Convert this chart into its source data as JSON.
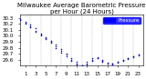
{
  "title": "Milwaukee Average Barometric Pressure",
  "subtitle": "per Hour (24 Hours)",
  "xlabel": "",
  "ylabel": "",
  "background_color": "#ffffff",
  "plot_background": "#ffffff",
  "dot_color": "#0000ff",
  "legend_color": "#0000ff",
  "grid_color": "#aaaaaa",
  "x_ticks": [
    1,
    3,
    5,
    7,
    9,
    11,
    13,
    15,
    17,
    19,
    21,
    23
  ],
  "xlim": [
    0,
    24
  ],
  "ylim_min": 29.5,
  "ylim_max": 30.35,
  "y_ticks": [
    29.6,
    29.7,
    29.8,
    29.9,
    30.0,
    30.1,
    30.2,
    30.3
  ],
  "hours": [
    0,
    0,
    0,
    1,
    1,
    1,
    2,
    2,
    2,
    3,
    3,
    3,
    4,
    4,
    4,
    5,
    5,
    5,
    6,
    6,
    6,
    7,
    7,
    7,
    8,
    8,
    8,
    9,
    9,
    9,
    10,
    10,
    10,
    11,
    11,
    11,
    12,
    12,
    12,
    13,
    13,
    13,
    14,
    14,
    14,
    15,
    15,
    15,
    16,
    16,
    16,
    17,
    17,
    17,
    18,
    18,
    18,
    19,
    19,
    19,
    20,
    20,
    20,
    21,
    21,
    21,
    22,
    22,
    22,
    23,
    23,
    23
  ],
  "pressures": [
    30.28,
    30.27,
    30.26,
    30.24,
    30.22,
    30.21,
    30.18,
    30.16,
    30.14,
    30.12,
    30.08,
    30.06,
    30.04,
    30.02,
    30.0,
    29.98,
    29.96,
    29.94,
    29.92,
    29.9,
    29.88,
    29.85,
    29.82,
    29.8,
    29.78,
    29.75,
    29.72,
    29.7,
    29.68,
    29.65,
    29.62,
    29.6,
    29.58,
    29.56,
    29.54,
    29.52,
    29.5,
    29.5,
    29.51,
    29.52,
    29.54,
    29.56,
    29.58,
    29.6,
    29.62,
    29.64,
    29.63,
    29.62,
    29.6,
    29.58,
    29.56,
    29.55,
    29.54,
    29.53,
    29.52,
    29.53,
    29.54,
    29.55,
    29.56,
    29.57,
    29.58,
    29.59,
    29.6,
    29.61,
    29.62,
    29.63,
    29.64,
    29.65,
    29.66,
    29.67,
    29.68,
    29.69
  ],
  "title_fontsize": 5,
  "tick_fontsize": 4,
  "marker_size": 1.2,
  "dpi": 100,
  "figwidth": 1.6,
  "figheight": 0.87
}
